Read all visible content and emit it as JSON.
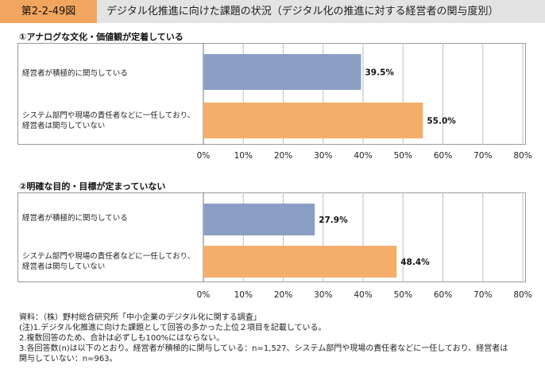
{
  "header": {
    "figure_label": "第2-2-49図",
    "title": "デジタル化推進に向けた課題の状況（デジタル化の推進に対する経営者の関与度別）"
  },
  "chart_data": [
    {
      "type": "bar",
      "orientation": "horizontal",
      "title": "①アナログな文化・価値観が定着している",
      "categories": [
        "経営者が積極的に関与している",
        "システム部門や現場の責任者などに一任しており、経営者は関与していない"
      ],
      "category_lines": [
        [
          "経営者が積極的に関与している"
        ],
        [
          "システム部門や現場の責任者などに一任しており、",
          "経営者は関与していない"
        ]
      ],
      "values": [
        39.5,
        55.0
      ],
      "value_labels": [
        "39.5%",
        "55.0%"
      ],
      "colors": [
        "#8a9fc3",
        "#f4ae6a"
      ],
      "xlim": [
        0,
        80
      ],
      "xticks": [
        "0%",
        "10%",
        "20%",
        "30%",
        "40%",
        "50%",
        "60%",
        "70%",
        "80%"
      ]
    },
    {
      "type": "bar",
      "orientation": "horizontal",
      "title": "②明確な目的・目標が定まっていない",
      "categories": [
        "経営者が積極的に関与している",
        "システム部門や現場の責任者などに一任しており、経営者は関与していない"
      ],
      "category_lines": [
        [
          "経営者が積極的に関与している"
        ],
        [
          "システム部門や現場の責任者などに一任しており、",
          "経営者は関与していない"
        ]
      ],
      "values": [
        27.9,
        48.4
      ],
      "value_labels": [
        "27.9%",
        "48.4%"
      ],
      "colors": [
        "#8a9fc3",
        "#f4ae6a"
      ],
      "xlim": [
        0,
        80
      ],
      "xticks": [
        "0%",
        "10%",
        "20%",
        "30%",
        "40%",
        "50%",
        "60%",
        "70%",
        "80%"
      ]
    }
  ],
  "footnotes": [
    "資料：（株）野村総合研究所「中小企業のデジタル化に関する調査」",
    "(注)1.デジタル化推進に向けた課題として回答の多かった上位２項目を記載している。",
    "2.複数回答のため、合計は必ずしも100%にはならない。",
    "3.各回答数(n)は以下のとおり。経営者が積極的に関与している：n=1,527、システム部門や現場の責任者などに一任しており、経営者は",
    "関与していない：n=963。"
  ]
}
